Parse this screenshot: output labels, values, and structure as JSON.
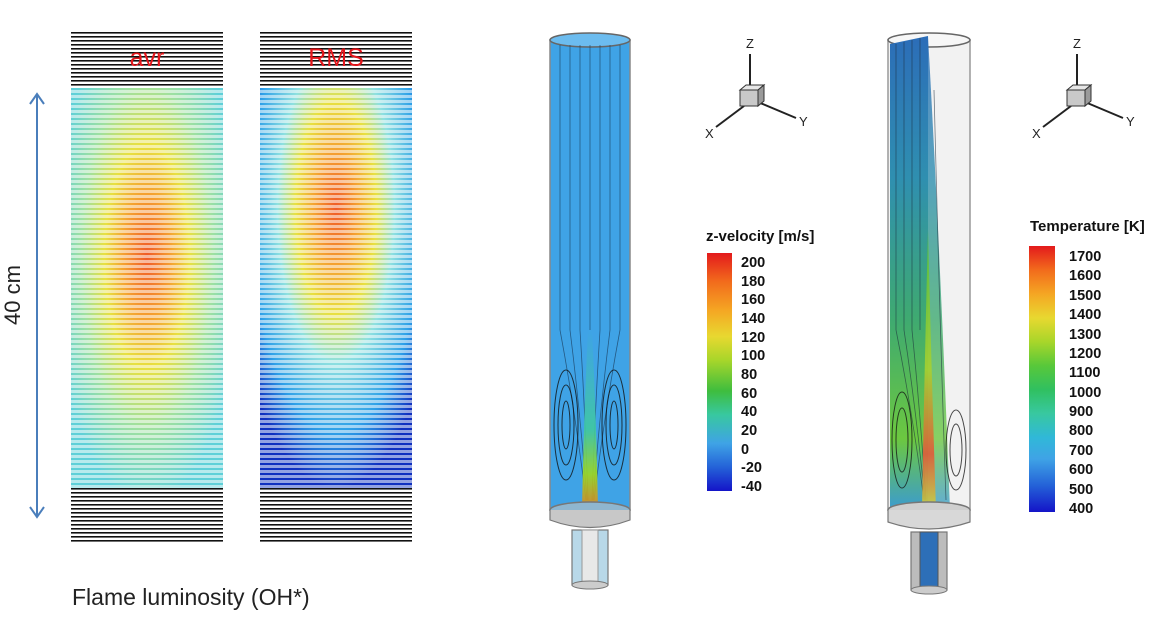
{
  "luminosity": {
    "panels": [
      {
        "label": "avr"
      },
      {
        "label": "RMS"
      }
    ],
    "dimension_label": "40 cm",
    "caption": "Flame luminosity (OH*)"
  },
  "velocity_legend": {
    "title": "z-velocity [m/s]",
    "ticks": [
      "200",
      "180",
      "160",
      "140",
      "120",
      "100",
      "80",
      "60",
      "40",
      "20",
      "0",
      "-20",
      "-40"
    ]
  },
  "temperature_legend": {
    "title": "Temperature [K]",
    "ticks": [
      "1700",
      "1600",
      "1500",
      "1400",
      "1300",
      "1200",
      "1100",
      "1000",
      "900",
      "800",
      "700",
      "600",
      "500",
      "400"
    ]
  },
  "axis_triad": {
    "x": "X",
    "y": "Y",
    "z": "Z"
  },
  "colors": {
    "label_red": "#e4161b",
    "arrow_blue": "#4a7ebb",
    "fluid_blue": "#3fa3e6"
  }
}
